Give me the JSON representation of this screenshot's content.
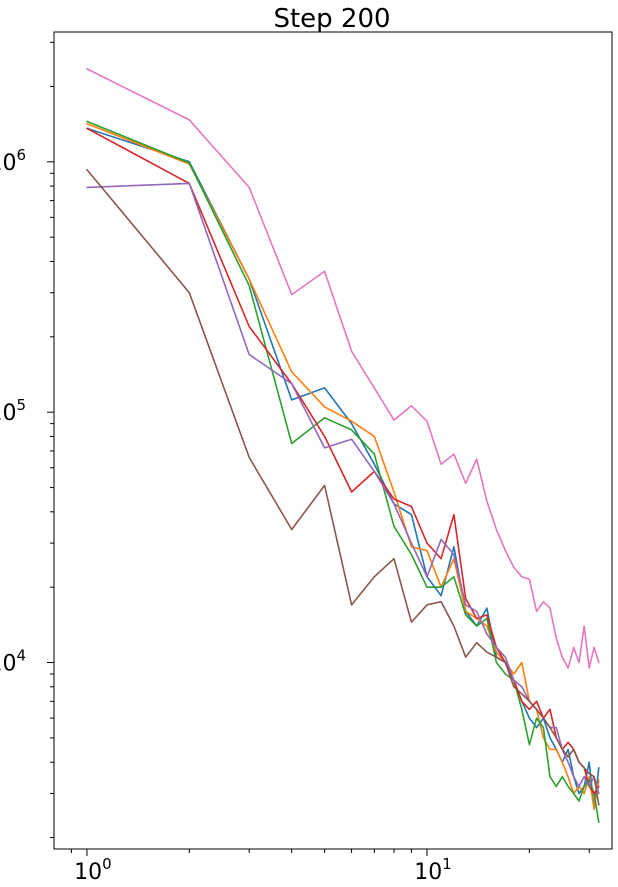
{
  "chart_data": {
    "type": "line",
    "title": "Step 200",
    "xlabel": "",
    "ylabel": "",
    "x_scale": "log",
    "y_scale": "log",
    "xlim": [
      0.8,
      35
    ],
    "ylim": [
      1800,
      3300000
    ],
    "x_ticks": [
      {
        "value": 1,
        "base": "10",
        "exp": "0"
      },
      {
        "value": 10,
        "base": "10",
        "exp": "1"
      }
    ],
    "y_ticks": [
      {
        "value": 10000,
        "base": "10",
        "exp": "4"
      },
      {
        "value": 100000,
        "base": "10",
        "exp": "5"
      },
      {
        "value": 1000000,
        "base": "10",
        "exp": "6"
      }
    ],
    "grid": false,
    "legend": "none",
    "x": [
      1,
      2,
      3,
      4,
      5,
      6,
      7,
      8,
      9,
      10,
      11,
      12,
      13,
      14,
      15,
      16,
      17,
      18,
      19,
      20,
      21,
      22,
      23,
      24,
      25,
      26,
      27,
      28,
      29,
      30,
      31,
      32
    ],
    "series": [
      {
        "color": "#1f77b4",
        "values": [
          1360000,
          1000000,
          340000,
          112000,
          125000,
          90000,
          62000,
          43000,
          39000,
          22000,
          18500,
          29000,
          16000,
          14000,
          16500,
          10500,
          10000,
          8500,
          7000,
          6000,
          5500,
          6000,
          5000,
          4500,
          4000,
          4500,
          3500,
          3000,
          3200,
          4000,
          2600,
          3800
        ]
      },
      {
        "color": "#ff7f0e",
        "values": [
          1420000,
          980000,
          340000,
          145000,
          105000,
          92000,
          80000,
          48000,
          29000,
          28000,
          20000,
          26000,
          16000,
          15000,
          14000,
          11000,
          10000,
          9000,
          10000,
          7000,
          6500,
          5000,
          4500,
          4500,
          4000,
          3500,
          3000,
          3200,
          3000,
          3500,
          2600,
          3400
        ]
      },
      {
        "color": "#2ca02c",
        "values": [
          1450000,
          990000,
          320000,
          75000,
          95000,
          85000,
          68000,
          35000,
          27000,
          20000,
          20000,
          22000,
          15500,
          14000,
          15000,
          10000,
          9000,
          8500,
          6500,
          4700,
          6000,
          5500,
          3500,
          3200,
          3500,
          3200,
          3000,
          2800,
          3200,
          3400,
          3000,
          2300
        ]
      },
      {
        "color": "#d62728",
        "values": [
          1360000,
          820000,
          220000,
          130000,
          80000,
          48000,
          58000,
          45000,
          42000,
          30000,
          26000,
          39000,
          18000,
          15000,
          15500,
          11500,
          10000,
          8500,
          7000,
          6500,
          7000,
          6000,
          6500,
          5000,
          4500,
          4800,
          4500,
          4000,
          3800,
          3200,
          3000,
          3200
        ]
      },
      {
        "color": "#9467bd",
        "values": [
          790000,
          820000,
          170000,
          130000,
          72000,
          78000,
          58000,
          43000,
          30000,
          22000,
          31000,
          27000,
          17000,
          16000,
          13000,
          11500,
          10500,
          8500,
          8000,
          7000,
          6500,
          6000,
          5500,
          5500,
          4500,
          4000,
          3500,
          3200,
          3500,
          3200,
          3500,
          3000
        ]
      },
      {
        "color": "#8c564b",
        "values": [
          930000,
          300000,
          66000,
          34000,
          51000,
          17000,
          22000,
          26000,
          14500,
          17000,
          17500,
          14000,
          10500,
          12000,
          11000,
          10500,
          10000,
          8000,
          7500,
          7000,
          6500,
          6000,
          5500,
          5000,
          4500,
          4200,
          4500,
          4000,
          3800,
          3600,
          3500,
          2700
        ]
      },
      {
        "color": "#e377c2",
        "values": [
          2350000,
          1470000,
          790000,
          295000,
          365000,
          175000,
          125000,
          93000,
          106000,
          92000,
          62000,
          68000,
          52000,
          65000,
          44000,
          34000,
          28000,
          24000,
          22000,
          21500,
          16000,
          17500,
          16500,
          12500,
          10500,
          9500,
          11500,
          10000,
          14000,
          9500,
          11500,
          10000
        ]
      }
    ]
  }
}
